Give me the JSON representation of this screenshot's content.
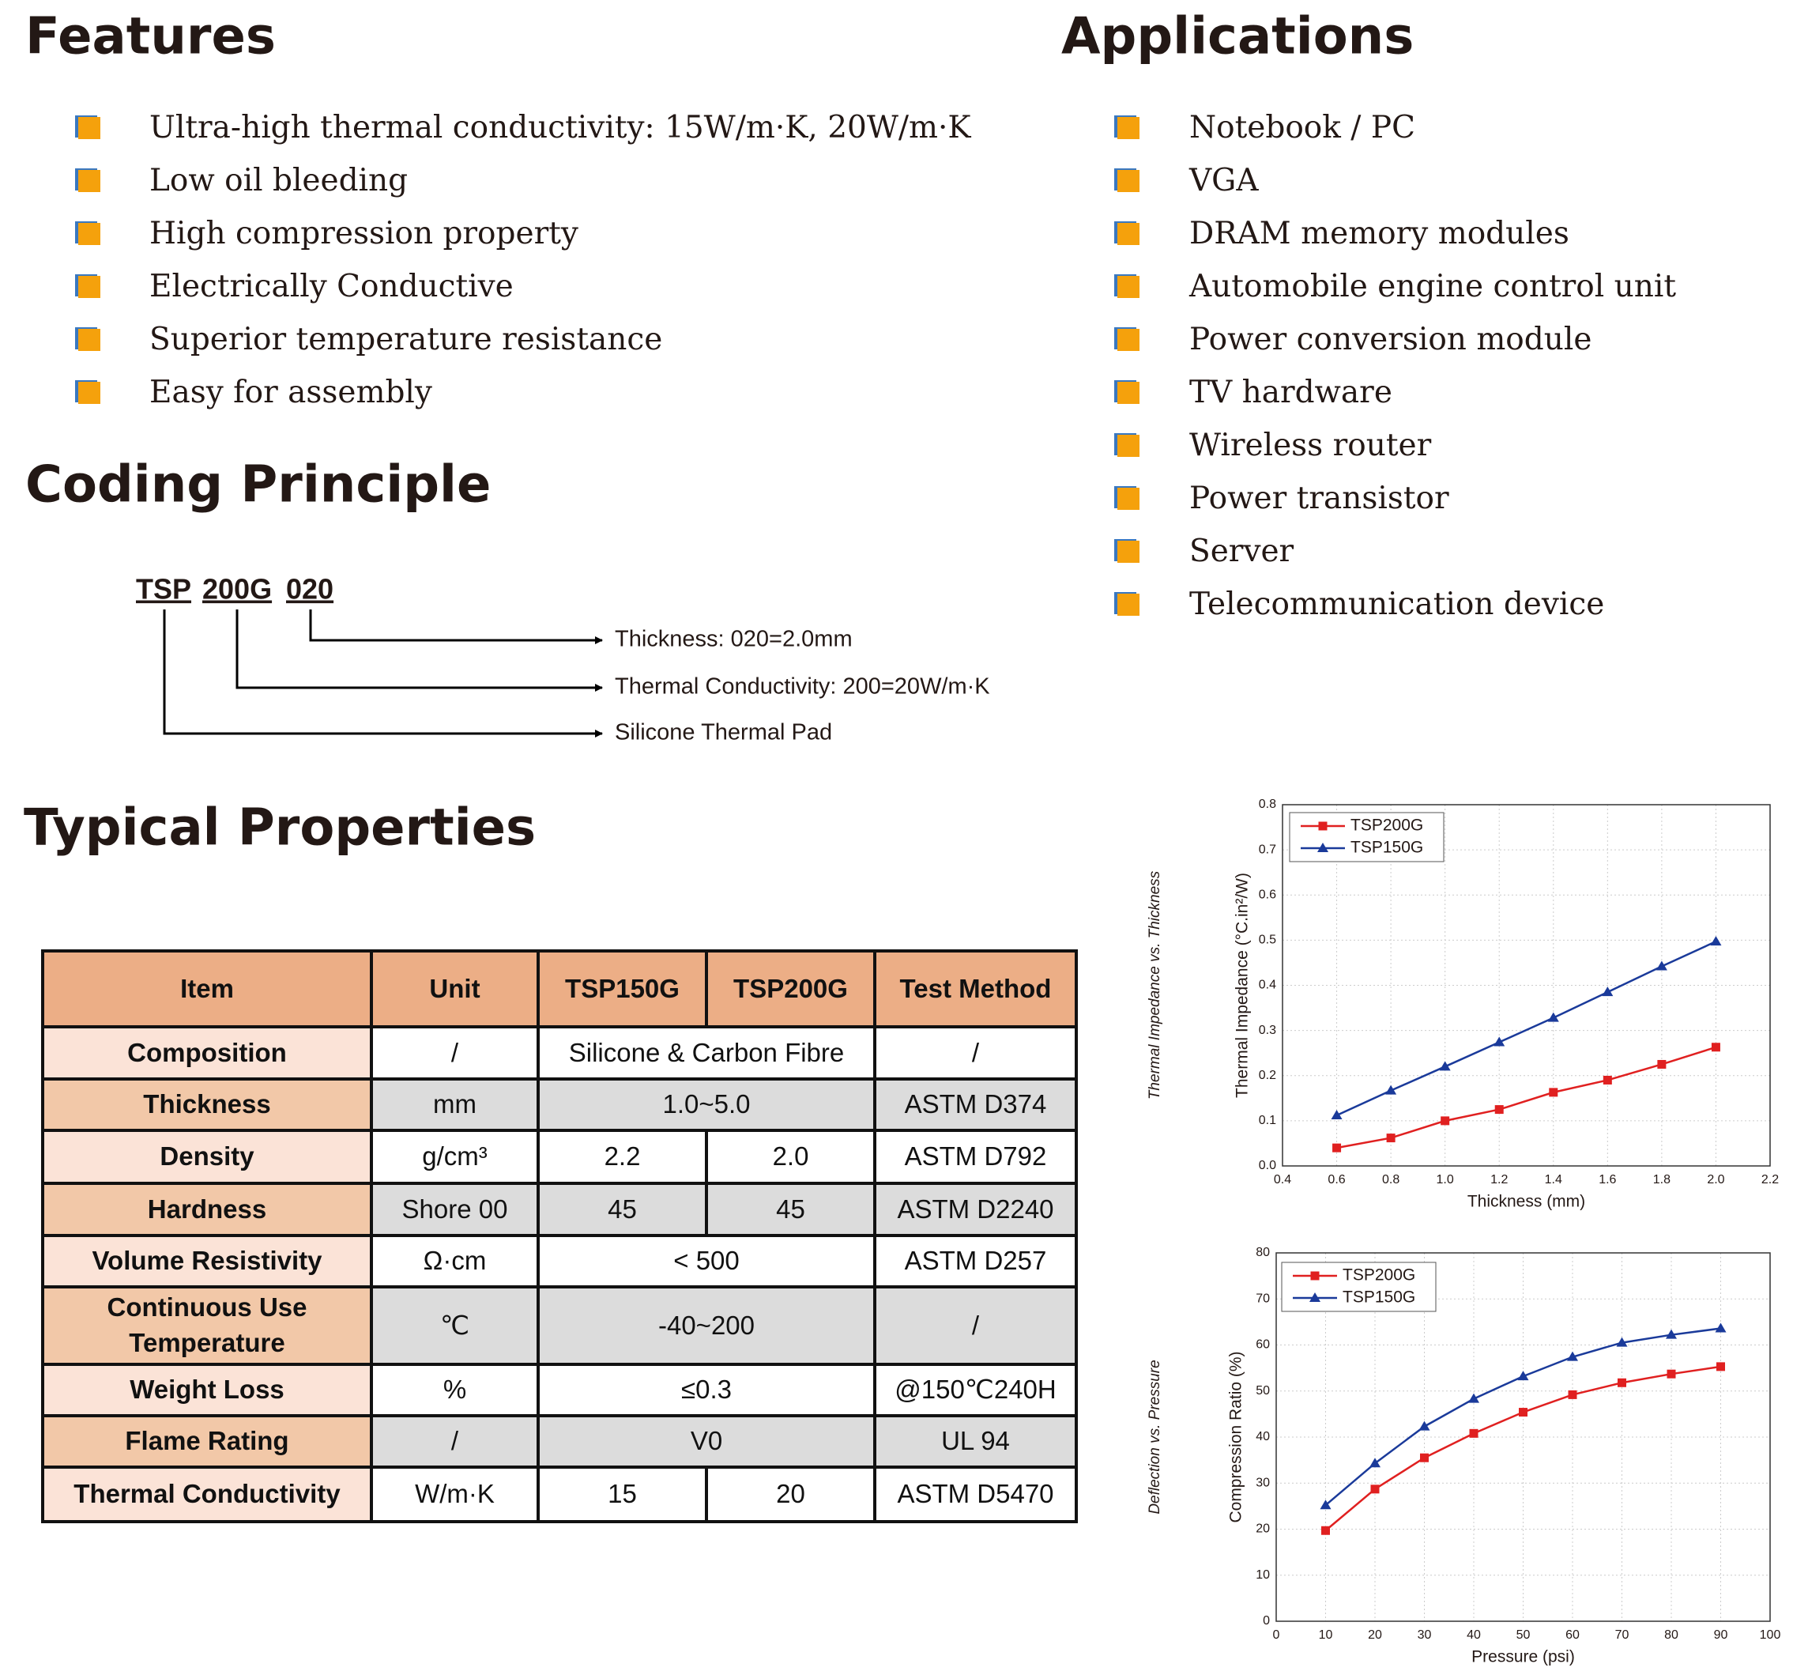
{
  "features": {
    "title": "Features",
    "items": [
      "Ultra-high thermal conductivity: 15W/m·K, 20W/m·K",
      "Low oil bleeding",
      "High compression property",
      "Electrically Conductive",
      "Superior temperature resistance",
      "Easy for assembly"
    ]
  },
  "applications": {
    "title": "Applications",
    "items": [
      "Notebook / PC",
      "VGA",
      "DRAM memory modules",
      "Automobile engine control unit",
      "Power conversion module",
      "TV hardware",
      "Wireless router",
      "Power transistor",
      "Server",
      "Telecommunication device"
    ]
  },
  "coding": {
    "title": "Coding Principle",
    "parts": [
      "TSP",
      "200G",
      "020"
    ],
    "labels": [
      "Silicone Thermal Pad",
      "Thermal Conductivity: 200=20W/m·K",
      "Thickness: 020=2.0mm"
    ]
  },
  "properties": {
    "title": "Typical Properties",
    "header": [
      "Item",
      "Unit",
      "TSP150G",
      "TSP200G",
      "Test Method"
    ],
    "rows": [
      [
        "Composition",
        "/",
        "Silicone & Carbon Fibre",
        "/"
      ],
      [
        "Thickness",
        "mm",
        "1.0~5.0",
        "ASTM D374"
      ],
      [
        "Density",
        "g/cm³",
        "2.2",
        "2.0",
        "ASTM D792"
      ],
      [
        "Hardness",
        "Shore 00",
        "45",
        "45",
        "ASTM D2240"
      ],
      [
        "Volume Resistivity",
        "Ω·cm",
        "< 500",
        "ASTM D257"
      ],
      [
        "Continuous Use Temperature",
        "℃",
        "-40~200",
        "/"
      ],
      [
        "Weight Loss",
        "%",
        "≤0.3",
        "@150℃240H"
      ],
      [
        "Flame Rating",
        "/",
        "V0",
        "UL 94"
      ],
      [
        "Thermal Conductivity",
        "W/m·K",
        "15",
        "20",
        "ASTM D5470"
      ]
    ]
  },
  "chart_data": [
    {
      "type": "line",
      "title": "Thermal Impedance vs. Thickness",
      "x_label": "Thickness (mm)",
      "y_label": "Thermal Impedance (°C.in²/W)",
      "x": [
        0.6,
        0.8,
        1.0,
        1.2,
        1.4,
        1.6,
        1.8,
        2.0
      ],
      "series": [
        {
          "name": "TSP200G",
          "color": "#e02020",
          "marker": "square",
          "values": [
            0.04,
            0.062,
            0.1,
            0.125,
            0.163,
            0.19,
            0.225,
            0.263
          ]
        },
        {
          "name": "TSP150G",
          "color": "#1a3a9a",
          "marker": "triangle",
          "values": [
            0.112,
            0.167,
            0.22,
            0.274,
            0.328,
            0.385,
            0.442,
            0.497
          ]
        }
      ],
      "xlim": [
        0.4,
        2.2
      ],
      "xticks": [
        0.4,
        0.6,
        0.8,
        {
          "value": 1.0,
          "label": "1.0"
        },
        1.2,
        1.4,
        1.6,
        1.8,
        {
          "value": 2.0,
          "label": "2.0"
        },
        2.2
      ],
      "ylim": [
        0,
        0.8
      ],
      "yticks": [
        {
          "value": 0,
          "label": "0.0"
        },
        0.1,
        0.2,
        0.3,
        0.4,
        0.5,
        0.6,
        0.7,
        0.8
      ],
      "grid": true,
      "legend": "top-left"
    },
    {
      "type": "line",
      "title": "Deflection vs. Pressure",
      "x_label": "Pressure (psi)",
      "y_label": "Compression Ratio (%)",
      "x": [
        10,
        20,
        30,
        40,
        50,
        60,
        70,
        80,
        90
      ],
      "series": [
        {
          "name": "TSP200G",
          "color": "#e02020",
          "marker": "square",
          "values": [
            19.7,
            28.7,
            35.5,
            40.8,
            45.4,
            49.2,
            51.8,
            53.7,
            55.3
          ]
        },
        {
          "name": "TSP150G",
          "color": "#1a3a9a",
          "marker": "triangle",
          "values": [
            25.2,
            34.3,
            42.3,
            48.3,
            53.2,
            57.4,
            60.5,
            62.2,
            63.6
          ]
        }
      ],
      "xlim": [
        0,
        100
      ],
      "xticks": [
        0,
        10,
        20,
        30,
        40,
        50,
        60,
        70,
        80,
        90,
        100
      ],
      "ylim": [
        0,
        80
      ],
      "yticks": [
        0,
        10,
        20,
        30,
        40,
        50,
        60,
        70,
        80
      ],
      "grid": true,
      "legend": "top-left"
    }
  ]
}
